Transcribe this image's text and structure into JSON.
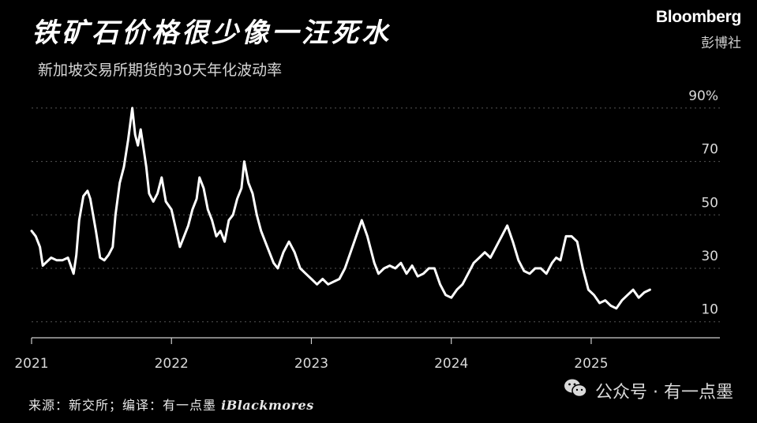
{
  "header": {
    "title": "铁矿石价格很少像一汪死水",
    "subtitle": "新加坡交易所期货的30天年化波动率"
  },
  "brand": {
    "name": "Bloomberg",
    "cn_name": "彭博社"
  },
  "footer": {
    "source": "来源：新交所；编译：有一点墨",
    "signature": "iBlackmores",
    "watermark": "公众号 · 有一点墨",
    "watermark_icon": "wechat-icon"
  },
  "colors": {
    "background": "#000000",
    "line": "#ffffff",
    "grid": "#555555"
  },
  "chart_data": {
    "type": "line",
    "title": "铁矿石价格很少像一汪死水",
    "subtitle": "新加坡交易所期货的30天年化波动率",
    "xlabel": "",
    "ylabel": "",
    "x_ticks": [
      "2021",
      "2022",
      "2023",
      "2024",
      "2025"
    ],
    "y_ticks": [
      "90%",
      "70",
      "50",
      "30",
      "10"
    ],
    "y_tick_values": [
      90,
      70,
      50,
      30,
      10
    ],
    "xlim": [
      2021.0,
      2025.92
    ],
    "ylim": [
      4,
      95
    ],
    "grid": true,
    "series": [
      {
        "name": "",
        "x": [
          2021.0,
          2021.03,
          2021.06,
          2021.08,
          2021.1,
          2021.14,
          2021.18,
          2021.22,
          2021.26,
          2021.3,
          2021.32,
          2021.34,
          2021.37,
          2021.4,
          2021.42,
          2021.46,
          2021.49,
          2021.52,
          2021.55,
          2021.58,
          2021.6,
          2021.63,
          2021.66,
          2021.69,
          2021.72,
          2021.74,
          2021.76,
          2021.78,
          2021.8,
          2021.82,
          2021.84,
          2021.87,
          2021.9,
          2021.93,
          2021.96,
          2022.0,
          2022.03,
          2022.06,
          2022.09,
          2022.12,
          2022.15,
          2022.18,
          2022.2,
          2022.23,
          2022.26,
          2022.29,
          2022.32,
          2022.35,
          2022.38,
          2022.41,
          2022.44,
          2022.47,
          2022.5,
          2022.52,
          2022.55,
          2022.58,
          2022.61,
          2022.64,
          2022.67,
          2022.7,
          2022.73,
          2022.76,
          2022.8,
          2022.84,
          2022.88,
          2022.92,
          2022.96,
          2023.0,
          2023.04,
          2023.08,
          2023.12,
          2023.16,
          2023.2,
          2023.24,
          2023.28,
          2023.32,
          2023.36,
          2023.4,
          2023.42,
          2023.45,
          2023.48,
          2023.52,
          2023.56,
          2023.6,
          2023.64,
          2023.68,
          2023.72,
          2023.76,
          2023.8,
          2023.84,
          2023.88,
          2023.92,
          2023.96,
          2024.0,
          2024.04,
          2024.08,
          2024.12,
          2024.16,
          2024.2,
          2024.24,
          2024.28,
          2024.32,
          2024.36,
          2024.4,
          2024.44,
          2024.48,
          2024.52,
          2024.56,
          2024.6,
          2024.64,
          2024.68,
          2024.72,
          2024.75,
          2024.78,
          2024.82,
          2024.86,
          2024.9,
          2024.94,
          2024.98,
          2025.02,
          2025.06,
          2025.1,
          2025.14,
          2025.18,
          2025.22,
          2025.26,
          2025.3,
          2025.34,
          2025.38,
          2025.42
        ],
        "values": [
          44,
          42,
          38,
          31,
          32,
          34,
          33,
          33,
          34,
          28,
          35,
          48,
          57,
          59,
          56,
          44,
          34,
          33,
          35,
          38,
          50,
          62,
          68,
          78,
          90,
          80,
          76,
          82,
          75,
          68,
          58,
          55,
          58,
          64,
          55,
          52,
          45,
          38,
          42,
          46,
          52,
          56,
          64,
          60,
          52,
          48,
          42,
          44,
          40,
          48,
          50,
          56,
          60,
          70,
          62,
          58,
          50,
          44,
          40,
          36,
          32,
          30,
          36,
          40,
          36,
          30,
          28,
          26,
          24,
          26,
          24,
          25,
          26,
          30,
          36,
          42,
          48,
          42,
          38,
          32,
          28,
          30,
          31,
          30,
          32,
          28,
          31,
          27,
          28,
          30,
          30,
          24,
          20,
          19,
          22,
          24,
          28,
          32,
          34,
          36,
          34,
          38,
          42,
          46,
          40,
          33,
          29,
          28,
          30,
          30,
          28,
          32,
          34,
          33,
          42,
          42,
          40,
          30,
          22,
          20,
          17,
          18,
          16,
          15,
          18,
          20,
          22,
          19,
          21,
          22
        ]
      }
    ]
  }
}
